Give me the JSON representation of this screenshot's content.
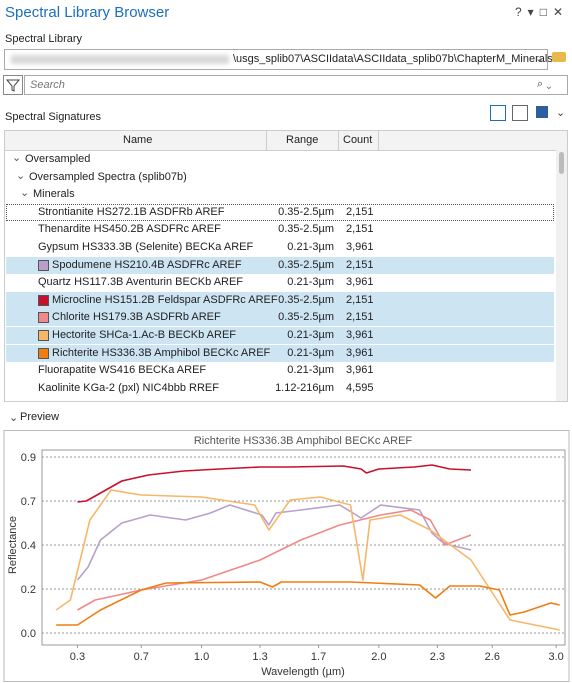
{
  "header": {
    "title": "Spectral Library Browser"
  },
  "library": {
    "label": "Spectral Library",
    "path": "\\usgs_splib07\\ASCIIdata\\ASCIIdata_splib07b\\ChapterM_Minerals"
  },
  "search": {
    "placeholder": "Search"
  },
  "signatures": {
    "label": "Spectral Signatures",
    "columns": [
      "Name",
      "Range",
      "Count"
    ],
    "groups": [
      "Oversampled",
      "Oversampled Spectra (splib07b)",
      "Minerals"
    ],
    "rows": [
      {
        "name": "Strontianite HS272.1B ASDFRb AREF",
        "range": "0.35-2.5µm",
        "count": "2,151",
        "selected": false
      },
      {
        "name": "Thenardite HS450.2B ASDFRc AREF",
        "range": "0.35-2.5µm",
        "count": "2,151",
        "selected": false
      },
      {
        "name": "Gypsum HS333.3B (Selenite) BECKa AREF",
        "range": "0.21-3µm",
        "count": "3,961",
        "selected": false
      },
      {
        "name": "Spodumene HS210.4B ASDFRc AREF",
        "range": "0.35-2.5µm",
        "count": "2,151",
        "selected": true,
        "color": "#b9a0cc"
      },
      {
        "name": "Quartz HS117.3B Aventurin BECKb AREF",
        "range": "0.21-3µm",
        "count": "3,961",
        "selected": false
      },
      {
        "name": "Microcline HS151.2B Feldspar ASDFRc AREF",
        "range": "0.35-2.5µm",
        "count": "2,151",
        "selected": true,
        "color": "#c8102e"
      },
      {
        "name": "Chlorite HS179.3B ASDFRb AREF",
        "range": "0.35-2.5µm",
        "count": "2,151",
        "selected": true,
        "color": "#f08a8a"
      },
      {
        "name": "Hectorite SHCa-1.Ac-B BECKb AREF",
        "range": "0.21-3µm",
        "count": "3,961",
        "selected": true,
        "color": "#f7b768"
      },
      {
        "name": "Richterite HS336.3B Amphibol BECKc AREF",
        "range": "0.21-3µm",
        "count": "3,961",
        "selected": true,
        "color": "#f07d10"
      },
      {
        "name": "Fluorapatite WS416 BECKa AREF",
        "range": "0.21-3µm",
        "count": "3,961",
        "selected": false
      },
      {
        "name": "Kaolinite KGa-2 (pxl) NIC4bbb RREF",
        "range": "1.12-216µm",
        "count": "4,595",
        "selected": false
      }
    ]
  },
  "preview": {
    "label": "Preview"
  },
  "chart_data": {
    "type": "line",
    "title": "Richterite HS336.3B Amphibol BECKc AREF",
    "x_label": "Wavelength (µm)",
    "y_label": "Reflectance",
    "xlim": [
      0.1,
      3.05
    ],
    "ylim": [
      -0.06,
      0.915
    ],
    "xticks": [
      0.3,
      {
        "value": 0.66,
        "label": "0.7"
      },
      {
        "value": 1,
        "label": "1.0"
      },
      {
        "value": 1.33,
        "label": "1.3"
      },
      {
        "value": 1.66,
        "label": "1.7"
      },
      {
        "value": 2,
        "label": "2.0"
      },
      {
        "value": 2.33,
        "label": "2.3"
      },
      {
        "value": 2.64,
        "label": "2.6"
      },
      {
        "value": 3,
        "label": "3.0"
      }
    ],
    "yticks": [
      {
        "value": 0,
        "label": "0.0"
      },
      {
        "value": 0.22,
        "label": "0.2"
      },
      {
        "value": 0.44,
        "label": "0.4"
      },
      {
        "value": 0.66,
        "label": "0.7"
      },
      {
        "value": 0.88,
        "label": "0.9"
      }
    ],
    "grid": true,
    "series": [
      {
        "color": "#b9a0cc",
        "x": [
          0.3,
          0.36,
          0.43,
          0.55,
          0.71,
          0.91,
          1.05,
          1.16,
          1.34,
          1.38,
          1.42,
          1.56,
          1.78,
          1.9,
          2.01,
          2.23,
          2.3,
          2.35,
          2.4,
          2.52
        ],
        "values": [
          0.265,
          0.33,
          0.465,
          0.55,
          0.59,
          0.565,
          0.6,
          0.64,
          0.59,
          0.54,
          0.6,
          0.615,
          0.64,
          0.575,
          0.64,
          0.615,
          0.5,
          0.46,
          0.44,
          0.415
        ]
      },
      {
        "color": "#c8102e",
        "x": [
          0.3,
          0.35,
          0.45,
          0.55,
          0.7,
          0.9,
          1.1,
          1.33,
          1.5,
          1.8,
          1.9,
          1.93,
          2.0,
          2.2,
          2.3,
          2.4,
          2.52
        ],
        "values": [
          0.655,
          0.66,
          0.71,
          0.76,
          0.79,
          0.81,
          0.82,
          0.83,
          0.83,
          0.835,
          0.82,
          0.8,
          0.82,
          0.83,
          0.84,
          0.82,
          0.815
        ]
      },
      {
        "color": "#f08a8a",
        "x": [
          0.3,
          0.4,
          0.66,
          1.0,
          1.33,
          1.56,
          1.78,
          2.01,
          2.18,
          2.29,
          2.37,
          2.52
        ],
        "values": [
          0.115,
          0.165,
          0.215,
          0.265,
          0.365,
          0.465,
          0.54,
          0.59,
          0.615,
          0.565,
          0.44,
          0.49
        ]
      },
      {
        "color": "#f7b768",
        "x": [
          0.18,
          0.26,
          0.37,
          0.49,
          0.66,
          1.0,
          1.3,
          1.38,
          1.5,
          1.67,
          1.84,
          1.91,
          1.95,
          2.12,
          2.29,
          2.52,
          2.63,
          2.74,
          3.02
        ],
        "values": [
          0.115,
          0.165,
          0.565,
          0.715,
          0.69,
          0.68,
          0.64,
          0.515,
          0.665,
          0.68,
          0.64,
          0.265,
          0.565,
          0.59,
          0.515,
          0.365,
          0.215,
          0.065,
          0.015
        ]
      },
      {
        "color": "#f07d10",
        "x": [
          0.18,
          0.3,
          0.43,
          0.66,
          0.8,
          1.33,
          1.4,
          1.45,
          1.84,
          2.23,
          2.32,
          2.4,
          2.57,
          2.68,
          2.74,
          2.82,
          2.97,
          3.02
        ],
        "values": [
          0.04,
          0.04,
          0.115,
          0.215,
          0.25,
          0.255,
          0.23,
          0.255,
          0.255,
          0.24,
          0.175,
          0.235,
          0.235,
          0.215,
          0.09,
          0.105,
          0.15,
          0.14
        ]
      }
    ]
  }
}
